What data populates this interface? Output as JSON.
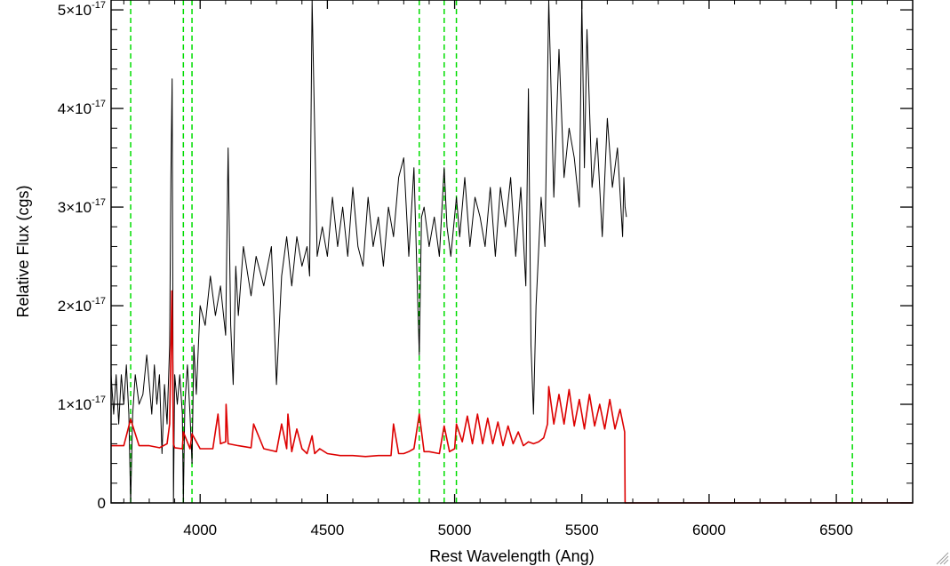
{
  "chart_data": {
    "type": "line",
    "xlabel": "Rest Wavelength (Ang)",
    "ylabel": "Relative Flux (cgs)",
    "xlim": [
      3650,
      6800
    ],
    "ylim": [
      0,
      5.1e-17
    ],
    "x_ticks": [
      {
        "value": 4000,
        "label": "4000"
      },
      {
        "value": 4500,
        "label": "4500"
      },
      {
        "value": 5000,
        "label": "5000"
      },
      {
        "value": 5500,
        "label": "5500"
      },
      {
        "value": 6000,
        "label": "6000"
      },
      {
        "value": 6500,
        "label": "6500"
      }
    ],
    "y_ticks": [
      {
        "value": 0,
        "label": "0",
        "mant": "",
        "exp": ""
      },
      {
        "value": 1e-17,
        "label": "1×10-17",
        "mant": "1×10",
        "exp": "-17"
      },
      {
        "value": 2e-17,
        "label": "2×10-17",
        "mant": "2×10",
        "exp": "-17"
      },
      {
        "value": 3e-17,
        "label": "3×10-17",
        "mant": "3×10",
        "exp": "-17"
      },
      {
        "value": 4e-17,
        "label": "4×10-17",
        "mant": "4×10",
        "exp": "-17"
      },
      {
        "value": 5e-17,
        "label": "5×10-17",
        "mant": "5×10",
        "exp": "-17"
      }
    ],
    "reference_lines": {
      "color": "#00dd00",
      "style": "dashed",
      "x": [
        3727,
        3934,
        3968,
        4861,
        4959,
        5007,
        6563
      ]
    },
    "series": [
      {
        "color": "#000000",
        "x": [
          3650,
          3660,
          3670,
          3680,
          3690,
          3700,
          3710,
          3720,
          3727,
          3735,
          3745,
          3760,
          3775,
          3790,
          3800,
          3810,
          3820,
          3830,
          3840,
          3850,
          3860,
          3870,
          3880,
          3885,
          3890,
          3895,
          3900,
          3910,
          3920,
          3930,
          3934,
          3940,
          3950,
          3960,
          3968,
          3975,
          3985,
          4000,
          4020,
          4040,
          4060,
          4080,
          4100,
          4110,
          4120,
          4130,
          4140,
          4150,
          4170,
          4200,
          4220,
          4250,
          4280,
          4300,
          4320,
          4340,
          4360,
          4380,
          4400,
          4420,
          4430,
          4440,
          4460,
          4480,
          4500,
          4520,
          4540,
          4560,
          4580,
          4600,
          4620,
          4640,
          4660,
          4680,
          4700,
          4720,
          4740,
          4760,
          4780,
          4800,
          4820,
          4840,
          4861,
          4870,
          4880,
          4900,
          4920,
          4940,
          4959,
          4970,
          4985,
          5007,
          5020,
          5040,
          5060,
          5080,
          5100,
          5120,
          5140,
          5160,
          5180,
          5200,
          5220,
          5240,
          5260,
          5280,
          5290,
          5300,
          5310,
          5320,
          5340,
          5355,
          5370,
          5390,
          5410,
          5430,
          5450,
          5470,
          5490,
          5500,
          5510,
          5520,
          5540,
          5560,
          5580,
          5600,
          5620,
          5640,
          5660,
          5665,
          5670,
          5675
        ],
        "y": [
          1.3e-17,
          9e-18,
          1.3e-17,
          8e-18,
          1.3e-17,
          1e-17,
          1.4e-17,
          9e-18,
          0.0,
          9e-18,
          1.3e-17,
          1e-17,
          1.1e-17,
          1.5e-17,
          1.2e-17,
          9e-18,
          1.4e-17,
          1e-17,
          1.3e-17,
          5e-18,
          1.2e-17,
          8e-18,
          1.6e-17,
          3.3e-17,
          4.3e-17,
          0.0,
          1.3e-17,
          1e-17,
          1.3e-17,
          9e-18,
          0.0,
          1e-17,
          1.4e-17,
          9e-18,
          4e-18,
          1.6e-17,
          1.1e-17,
          2e-17,
          1.8e-17,
          2.3e-17,
          1.9e-17,
          2.2e-17,
          1.7e-17,
          3.6e-17,
          1.8e-17,
          1.2e-17,
          2.4e-17,
          1.9e-17,
          2.6e-17,
          2.1e-17,
          2.5e-17,
          2.2e-17,
          2.6e-17,
          1.2e-17,
          2.3e-17,
          2.7e-17,
          2.2e-17,
          2.7e-17,
          2.4e-17,
          2.6e-17,
          2.3e-17,
          5.1e-17,
          2.5e-17,
          2.8e-17,
          2.5e-17,
          3.1e-17,
          2.6e-17,
          3e-17,
          2.5e-17,
          3.2e-17,
          2.6e-17,
          2.4e-17,
          3.1e-17,
          2.6e-17,
          2.9e-17,
          2.4e-17,
          3e-17,
          2.7e-17,
          3.3e-17,
          3.5e-17,
          2.5e-17,
          3.4e-17,
          1.5e-17,
          2.9e-17,
          3e-17,
          2.6e-17,
          2.9e-17,
          2.5e-17,
          3.4e-17,
          2.8e-17,
          2.5e-17,
          3.1e-17,
          2.7e-17,
          3.3e-17,
          2.6e-17,
          3.1e-17,
          2.9e-17,
          2.6e-17,
          3.2e-17,
          2.5e-17,
          3.2e-17,
          2.8e-17,
          3.3e-17,
          2.5e-17,
          3.2e-17,
          2.2e-17,
          4.2e-17,
          1.6e-17,
          9e-18,
          2e-17,
          3.1e-17,
          2.6e-17,
          5.1e-17,
          3.1e-17,
          4.6e-17,
          3.3e-17,
          3.8e-17,
          3.5e-17,
          3e-17,
          5.1e-17,
          3.4e-17,
          4.8e-17,
          3.2e-17,
          3.7e-17,
          2.7e-17,
          3.9e-17,
          3.2e-17,
          3.6e-17,
          2.7e-17,
          3.3e-17,
          3e-17,
          2.9e-17
        ]
      },
      {
        "color": "#dd0000",
        "x": [
          3650,
          3700,
          3727,
          3760,
          3800,
          3840,
          3870,
          3880,
          3889,
          3895,
          3900,
          3930,
          3934,
          3960,
          3968,
          4000,
          4050,
          4070,
          4080,
          4100,
          4102,
          4110,
          4150,
          4200,
          4210,
          4250,
          4300,
          4320,
          4340,
          4345,
          4360,
          4380,
          4400,
          4420,
          4440,
          4450,
          4470,
          4500,
          4550,
          4600,
          4650,
          4700,
          4750,
          4760,
          4780,
          4800,
          4820,
          4840,
          4861,
          4880,
          4900,
          4940,
          4959,
          4980,
          5000,
          5007,
          5030,
          5050,
          5070,
          5090,
          5110,
          5130,
          5150,
          5170,
          5190,
          5210,
          5230,
          5250,
          5270,
          5290,
          5310,
          5330,
          5350,
          5365,
          5370,
          5390,
          5410,
          5430,
          5450,
          5470,
          5490,
          5510,
          5530,
          5550,
          5570,
          5590,
          5610,
          5630,
          5650,
          5668,
          5670,
          5680,
          6800
        ],
        "y": [
          5.8e-18,
          5.8e-18,
          8.5e-18,
          5.8e-18,
          5.8e-18,
          5.6e-18,
          6e-18,
          8e-18,
          2.15e-17,
          6e-18,
          5.6e-18,
          5.5e-18,
          7.2e-18,
          5.5e-18,
          7e-18,
          5.5e-18,
          5.5e-18,
          9e-18,
          6e-18,
          6.2e-18,
          1e-17,
          6e-18,
          5.8e-18,
          5.6e-18,
          8e-18,
          5.5e-18,
          5.2e-18,
          8e-18,
          5.5e-18,
          9e-18,
          5.2e-18,
          7.5e-18,
          5.5e-18,
          5e-18,
          6.8e-18,
          5e-18,
          5.5e-18,
          5e-18,
          4.8e-18,
          4.8e-18,
          4.7e-18,
          4.8e-18,
          4.8e-18,
          8e-18,
          5e-18,
          5e-18,
          5.2e-18,
          5.5e-18,
          9e-18,
          5.2e-18,
          5.2e-18,
          5e-18,
          7.8e-18,
          5.2e-18,
          5.5e-18,
          8e-18,
          6.2e-18,
          8.8e-18,
          6e-18,
          9e-18,
          6e-18,
          8.6e-18,
          6e-18,
          8.2e-18,
          5.8e-18,
          7.8e-18,
          6e-18,
          7.2e-18,
          5.8e-18,
          6.2e-18,
          6e-18,
          6.2e-18,
          6.6e-18,
          8e-18,
          1.18e-17,
          8e-18,
          1.1e-17,
          8e-18,
          1.15e-17,
          7.8e-18,
          1.05e-17,
          7.5e-18,
          1.1e-17,
          7.8e-18,
          1e-17,
          7.5e-18,
          1.05e-17,
          7.5e-18,
          9.5e-18,
          7.2e-18,
          0.0,
          0.0,
          0.0
        ]
      }
    ]
  }
}
